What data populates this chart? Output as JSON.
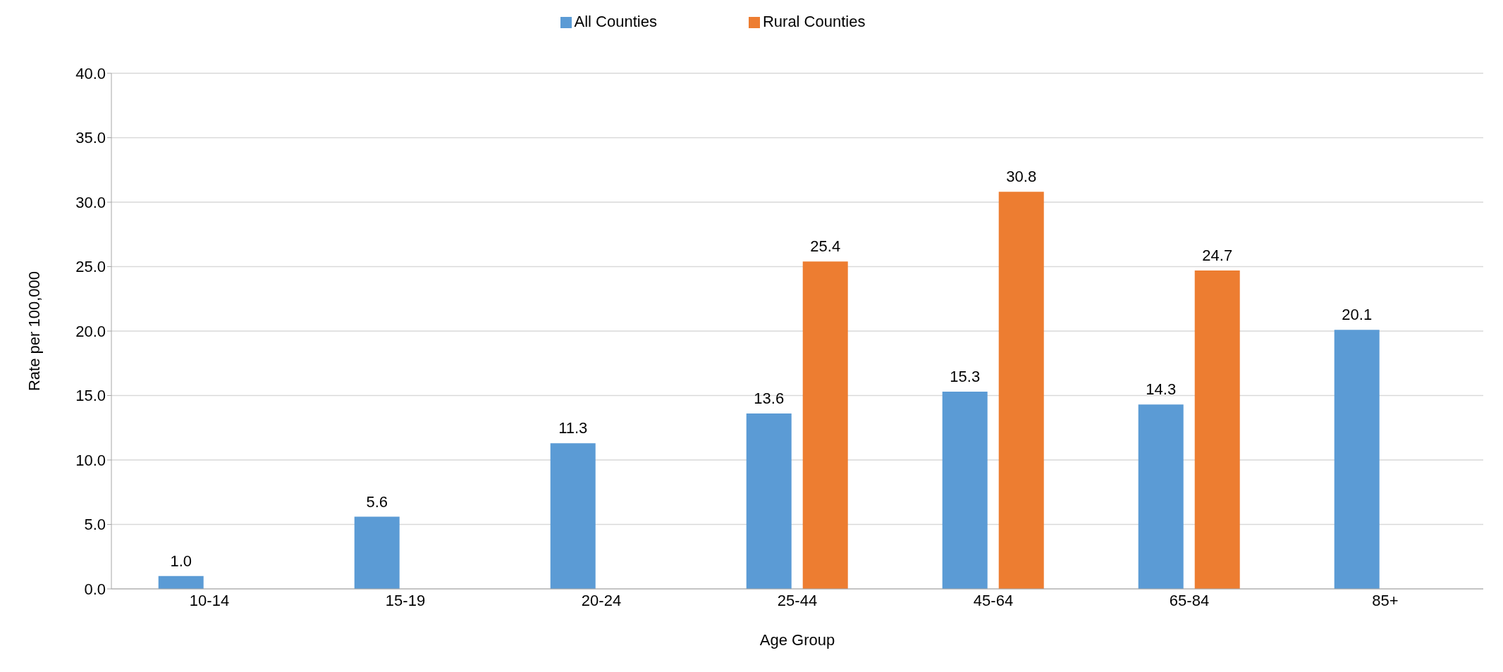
{
  "chart_data": {
    "type": "bar",
    "xlabel": "Age Group",
    "ylabel": "Rate per 100,000",
    "categories": [
      "10-14",
      "15-19",
      "20-24",
      "25-44",
      "45-64",
      "65-84",
      "85+"
    ],
    "series": [
      {
        "name": "All Counties",
        "color": "#5b9bd5",
        "values": [
          1.0,
          5.6,
          11.3,
          13.6,
          15.3,
          14.3,
          20.1
        ],
        "value_labels": [
          "1.0",
          "5.6",
          "11.3",
          "13.6",
          "15.3",
          "14.3",
          "20.1"
        ]
      },
      {
        "name": "Rural Counties",
        "color": "#ed7d31",
        "values": [
          null,
          null,
          null,
          25.4,
          30.8,
          24.7,
          null
        ],
        "value_labels": [
          null,
          null,
          null,
          "25.4",
          "30.8",
          "24.7",
          null
        ]
      }
    ],
    "ylim": [
      0,
      40
    ],
    "yticks": [
      {
        "value": 0,
        "label": "0.0"
      },
      {
        "value": 5,
        "label": "5.0"
      },
      {
        "value": 10,
        "label": "10.0"
      },
      {
        "value": 15,
        "label": "15.0"
      },
      {
        "value": 20,
        "label": "20.0"
      },
      {
        "value": 25,
        "label": "25.0"
      },
      {
        "value": 30,
        "label": "30.0"
      },
      {
        "value": 35,
        "label": "35.0"
      },
      {
        "value": 40,
        "label": "40.0"
      }
    ],
    "grid": "y",
    "legend": "top"
  }
}
